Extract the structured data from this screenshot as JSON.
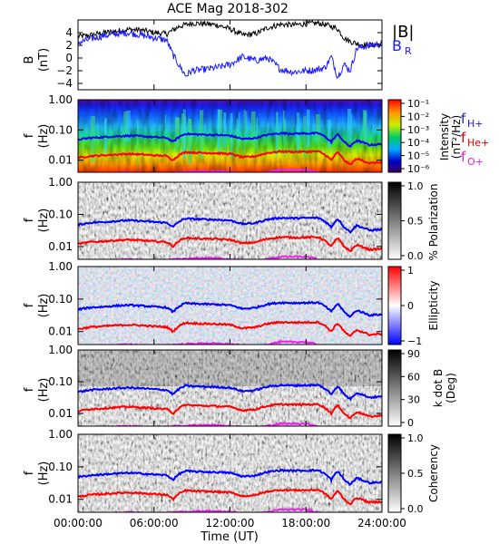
{
  "chart_data": {
    "type": "line",
    "title": "ACE Mag 2018-302",
    "xlabel": "Time (UT)",
    "x_ticks": [
      "00:00:00",
      "06:00:00",
      "12:00:00",
      "18:00:00",
      "24:00:00"
    ],
    "x_range_hours": [
      0,
      24
    ],
    "colors": {
      "total": "#000000",
      "radial": "#1a1aff",
      "h": "#0000ff",
      "he": "#ff0000",
      "o": "#ee22ee"
    },
    "panels": [
      {
        "id": "field",
        "ylabel": "B",
        "yunit": "(nT)",
        "ylim": [
          -5,
          6
        ],
        "y_ticks": [
          "4",
          "2",
          "0",
          "−2",
          "−4"
        ],
        "legend": [
          "|B|",
          "B",
          "R"
        ],
        "series": [
          {
            "name": "|B|",
            "color": "#000000",
            "x": [
              0,
              1,
              2,
              3,
              4,
              5,
              6,
              7,
              7.5,
              8,
              9,
              10,
              11,
              12,
              13,
              14,
              15,
              16,
              17,
              18,
              19,
              20,
              20.5,
              21,
              21.5,
              22,
              23,
              24
            ],
            "y": [
              3.4,
              3.6,
              4.0,
              4.2,
              4.5,
              4.4,
              4.0,
              3.8,
              4.4,
              5.0,
              5.5,
              5.4,
              5.2,
              4.6,
              3.6,
              3.8,
              4.8,
              5.3,
              5.2,
              5.4,
              5.5,
              5.0,
              4.6,
              3.2,
              2.6,
              2.3,
              2.0,
              2.2
            ]
          },
          {
            "name": "B R",
            "color": "#1a1aff",
            "x": [
              0,
              1,
              2,
              3,
              4,
              5,
              6,
              7,
              7.5,
              8,
              8.5,
              9,
              10,
              11,
              12,
              13,
              14,
              15,
              16,
              17,
              18,
              19,
              19.5,
              20,
              20.5,
              21,
              21.5,
              22,
              23,
              24
            ],
            "y": [
              2.4,
              3.0,
              3.5,
              3.8,
              4.0,
              3.6,
              3.2,
              2.8,
              0.5,
              -1.2,
              -2.8,
              -2.0,
              -1.8,
              -1.5,
              -1.0,
              0.2,
              -0.4,
              0.0,
              -1.8,
              -2.2,
              -2.0,
              -1.8,
              -1.5,
              0.2,
              -3.0,
              -1.0,
              -2.0,
              1.5,
              2.0,
              2.2
            ]
          }
        ]
      },
      {
        "id": "intensity",
        "ylabel": "f",
        "yunit": "(Hz)",
        "yscale": "log",
        "ylim": [
          0.004,
          1.0
        ],
        "y_ticks": [
          "1.00",
          "0.10",
          "0.01"
        ],
        "colorbar": {
          "label": "Intensity",
          "unit": "(nT²/Hz)",
          "ticks": [
            "10⁻¹",
            "10⁻²",
            "10⁻³",
            "10⁻⁴",
            "10⁻⁵",
            "10⁻⁶"
          ],
          "palette": "rainbow"
        },
        "legend": [
          "f",
          "H+",
          "f",
          "He+",
          "f",
          "O+"
        ]
      },
      {
        "id": "polarization",
        "ylabel": "f",
        "yunit": "(Hz)",
        "yscale": "log",
        "ylim": [
          0.004,
          1.0
        ],
        "y_ticks": [
          "1.00",
          "0.10",
          "0.01"
        ],
        "colorbar": {
          "label": "% Polarization",
          "ticks": [
            "1.0",
            "0.5",
            "0.0"
          ],
          "palette": "gray"
        }
      },
      {
        "id": "ellipticity",
        "ylabel": "f",
        "yunit": "(Hz)",
        "yscale": "log",
        "ylim": [
          0.004,
          1.0
        ],
        "y_ticks": [
          "1.00",
          "0.10",
          "0.01"
        ],
        "colorbar": {
          "label": "Ellipticity",
          "ticks": [
            "1",
            "0",
            "−1"
          ],
          "palette": "bwr"
        }
      },
      {
        "id": "kdotb",
        "ylabel": "f",
        "yunit": "(Hz)",
        "yscale": "log",
        "ylim": [
          0.004,
          1.0
        ],
        "y_ticks": [
          "1.00",
          "0.10",
          "0.01"
        ],
        "colorbar": {
          "label": "k dot B",
          "unit": "(Deg)",
          "ticks": [
            "90",
            "60",
            "30",
            "0"
          ],
          "palette": "gray"
        }
      },
      {
        "id": "coherency",
        "ylabel": "f",
        "yunit": "(Hz)",
        "yscale": "log",
        "ylim": [
          0.004,
          1.0
        ],
        "y_ticks": [
          "1.00",
          "0.10",
          "0.01"
        ],
        "colorbar": {
          "label": "Coherency",
          "ticks": [
            "1.0",
            "0.5",
            "0.0"
          ],
          "palette": "gray"
        }
      }
    ],
    "gyrofrequency_series": [
      {
        "name": "f H+",
        "color": "#0000ff",
        "x": [
          0,
          1,
          2,
          3,
          4,
          5,
          6,
          7,
          7.5,
          8,
          8.5,
          9,
          10,
          11,
          12,
          13,
          14,
          15,
          16,
          17,
          18,
          19,
          19.5,
          20,
          20.5,
          21,
          21.5,
          22,
          23,
          24
        ],
        "y": [
          0.048,
          0.055,
          0.058,
          0.062,
          0.065,
          0.062,
          0.058,
          0.055,
          0.04,
          0.06,
          0.075,
          0.072,
          0.07,
          0.068,
          0.065,
          0.05,
          0.054,
          0.07,
          0.078,
          0.076,
          0.077,
          0.078,
          0.06,
          0.04,
          0.072,
          0.04,
          0.028,
          0.045,
          0.032,
          0.034
        ]
      },
      {
        "name": "f He+",
        "color": "#ff0000",
        "x": [
          0,
          1,
          2,
          3,
          4,
          5,
          6,
          7,
          7.5,
          8,
          8.5,
          9,
          10,
          11,
          12,
          13,
          14,
          15,
          16,
          17,
          18,
          19,
          19.5,
          20,
          20.5,
          21,
          21.5,
          22,
          23,
          24
        ],
        "y": [
          0.012,
          0.0138,
          0.0145,
          0.0155,
          0.0162,
          0.0155,
          0.0145,
          0.0138,
          0.01,
          0.015,
          0.0188,
          0.018,
          0.0175,
          0.017,
          0.0162,
          0.0125,
          0.0135,
          0.0175,
          0.0195,
          0.019,
          0.0192,
          0.0195,
          0.015,
          0.01,
          0.018,
          0.01,
          0.007,
          0.0112,
          0.008,
          0.0085
        ]
      },
      {
        "name": "f O+",
        "color": "#ee22ee",
        "x": [
          0,
          2,
          4,
          6,
          8,
          10,
          12,
          14,
          16,
          18,
          20,
          22,
          24
        ],
        "y": [
          0.0031,
          0.0036,
          0.004,
          0.0036,
          0.004,
          0.0044,
          0.0041,
          0.0034,
          0.0048,
          0.0048,
          0.003,
          0.0028,
          0.0021
        ]
      }
    ]
  }
}
